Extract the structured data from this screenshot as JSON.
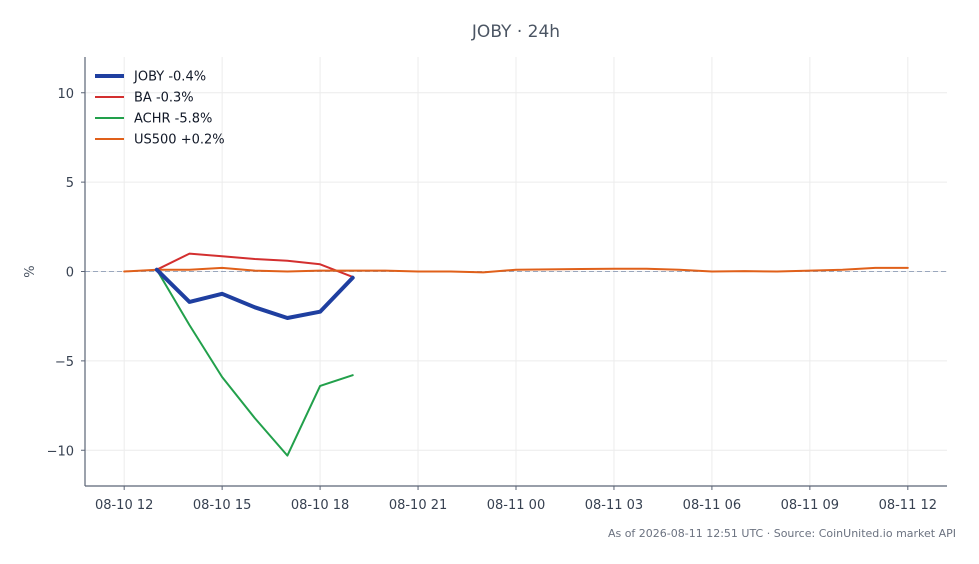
{
  "chart_data": {
    "type": "line",
    "title": "JOBY · 24h",
    "xlabel": "",
    "ylabel": "%",
    "ylim": [
      -12,
      12
    ],
    "yticks": [
      10,
      5,
      0,
      -5,
      -10
    ],
    "ytick_labels": [
      "10",
      "5",
      "0",
      "−5",
      "−10"
    ],
    "xticks": [
      0,
      3,
      6,
      9,
      12,
      15,
      18,
      21,
      24
    ],
    "xtick_labels": [
      "08-10 12",
      "08-10 15",
      "08-10 18",
      "08-10 21",
      "08-11 00",
      "08-11 03",
      "08-11 06",
      "08-11 09",
      "08-11 12"
    ],
    "xlim": [
      -1.2,
      25.2
    ],
    "grid": true,
    "zero_line": true,
    "legend_position": "top-left",
    "series": [
      {
        "name": "JOBY -0.4%",
        "color": "#1f3fa0",
        "width": 4,
        "x": [
          1,
          2,
          3,
          4,
          5,
          6,
          7
        ],
        "y": [
          0.1,
          -1.7,
          -1.25,
          -2.0,
          -2.6,
          -2.25,
          -0.35
        ]
      },
      {
        "name": "BA -0.3%",
        "color": "#d32f2f",
        "width": 2,
        "x": [
          1,
          2,
          3,
          4,
          5,
          6,
          7
        ],
        "y": [
          0.1,
          1.0,
          0.85,
          0.7,
          0.6,
          0.4,
          -0.3
        ]
      },
      {
        "name": "ACHR -5.8%",
        "color": "#22a04b",
        "width": 2,
        "x": [
          1,
          2,
          3,
          4,
          5,
          6,
          7
        ],
        "y": [
          0.1,
          -3.0,
          -5.9,
          -8.2,
          -10.3,
          -6.4,
          -5.8
        ]
      },
      {
        "name": "US500 +0.2%",
        "color": "#e0601a",
        "width": 2,
        "x": [
          0,
          1,
          2,
          3,
          4,
          5,
          6,
          7,
          8,
          9,
          10,
          11,
          12,
          13,
          14,
          15,
          16,
          17,
          18,
          19,
          20,
          21,
          22,
          23,
          24
        ],
        "y": [
          0.0,
          0.1,
          0.1,
          0.2,
          0.05,
          0.0,
          0.05,
          0.05,
          0.05,
          0.0,
          0.0,
          -0.05,
          0.1,
          0.12,
          0.14,
          0.15,
          0.15,
          0.1,
          0.0,
          0.02,
          0.0,
          0.05,
          0.1,
          0.2,
          0.2
        ]
      }
    ]
  },
  "footer": {
    "text": "As of 2026-08-11 12:51 UTC · Source: CoinUnited.io market API"
  }
}
